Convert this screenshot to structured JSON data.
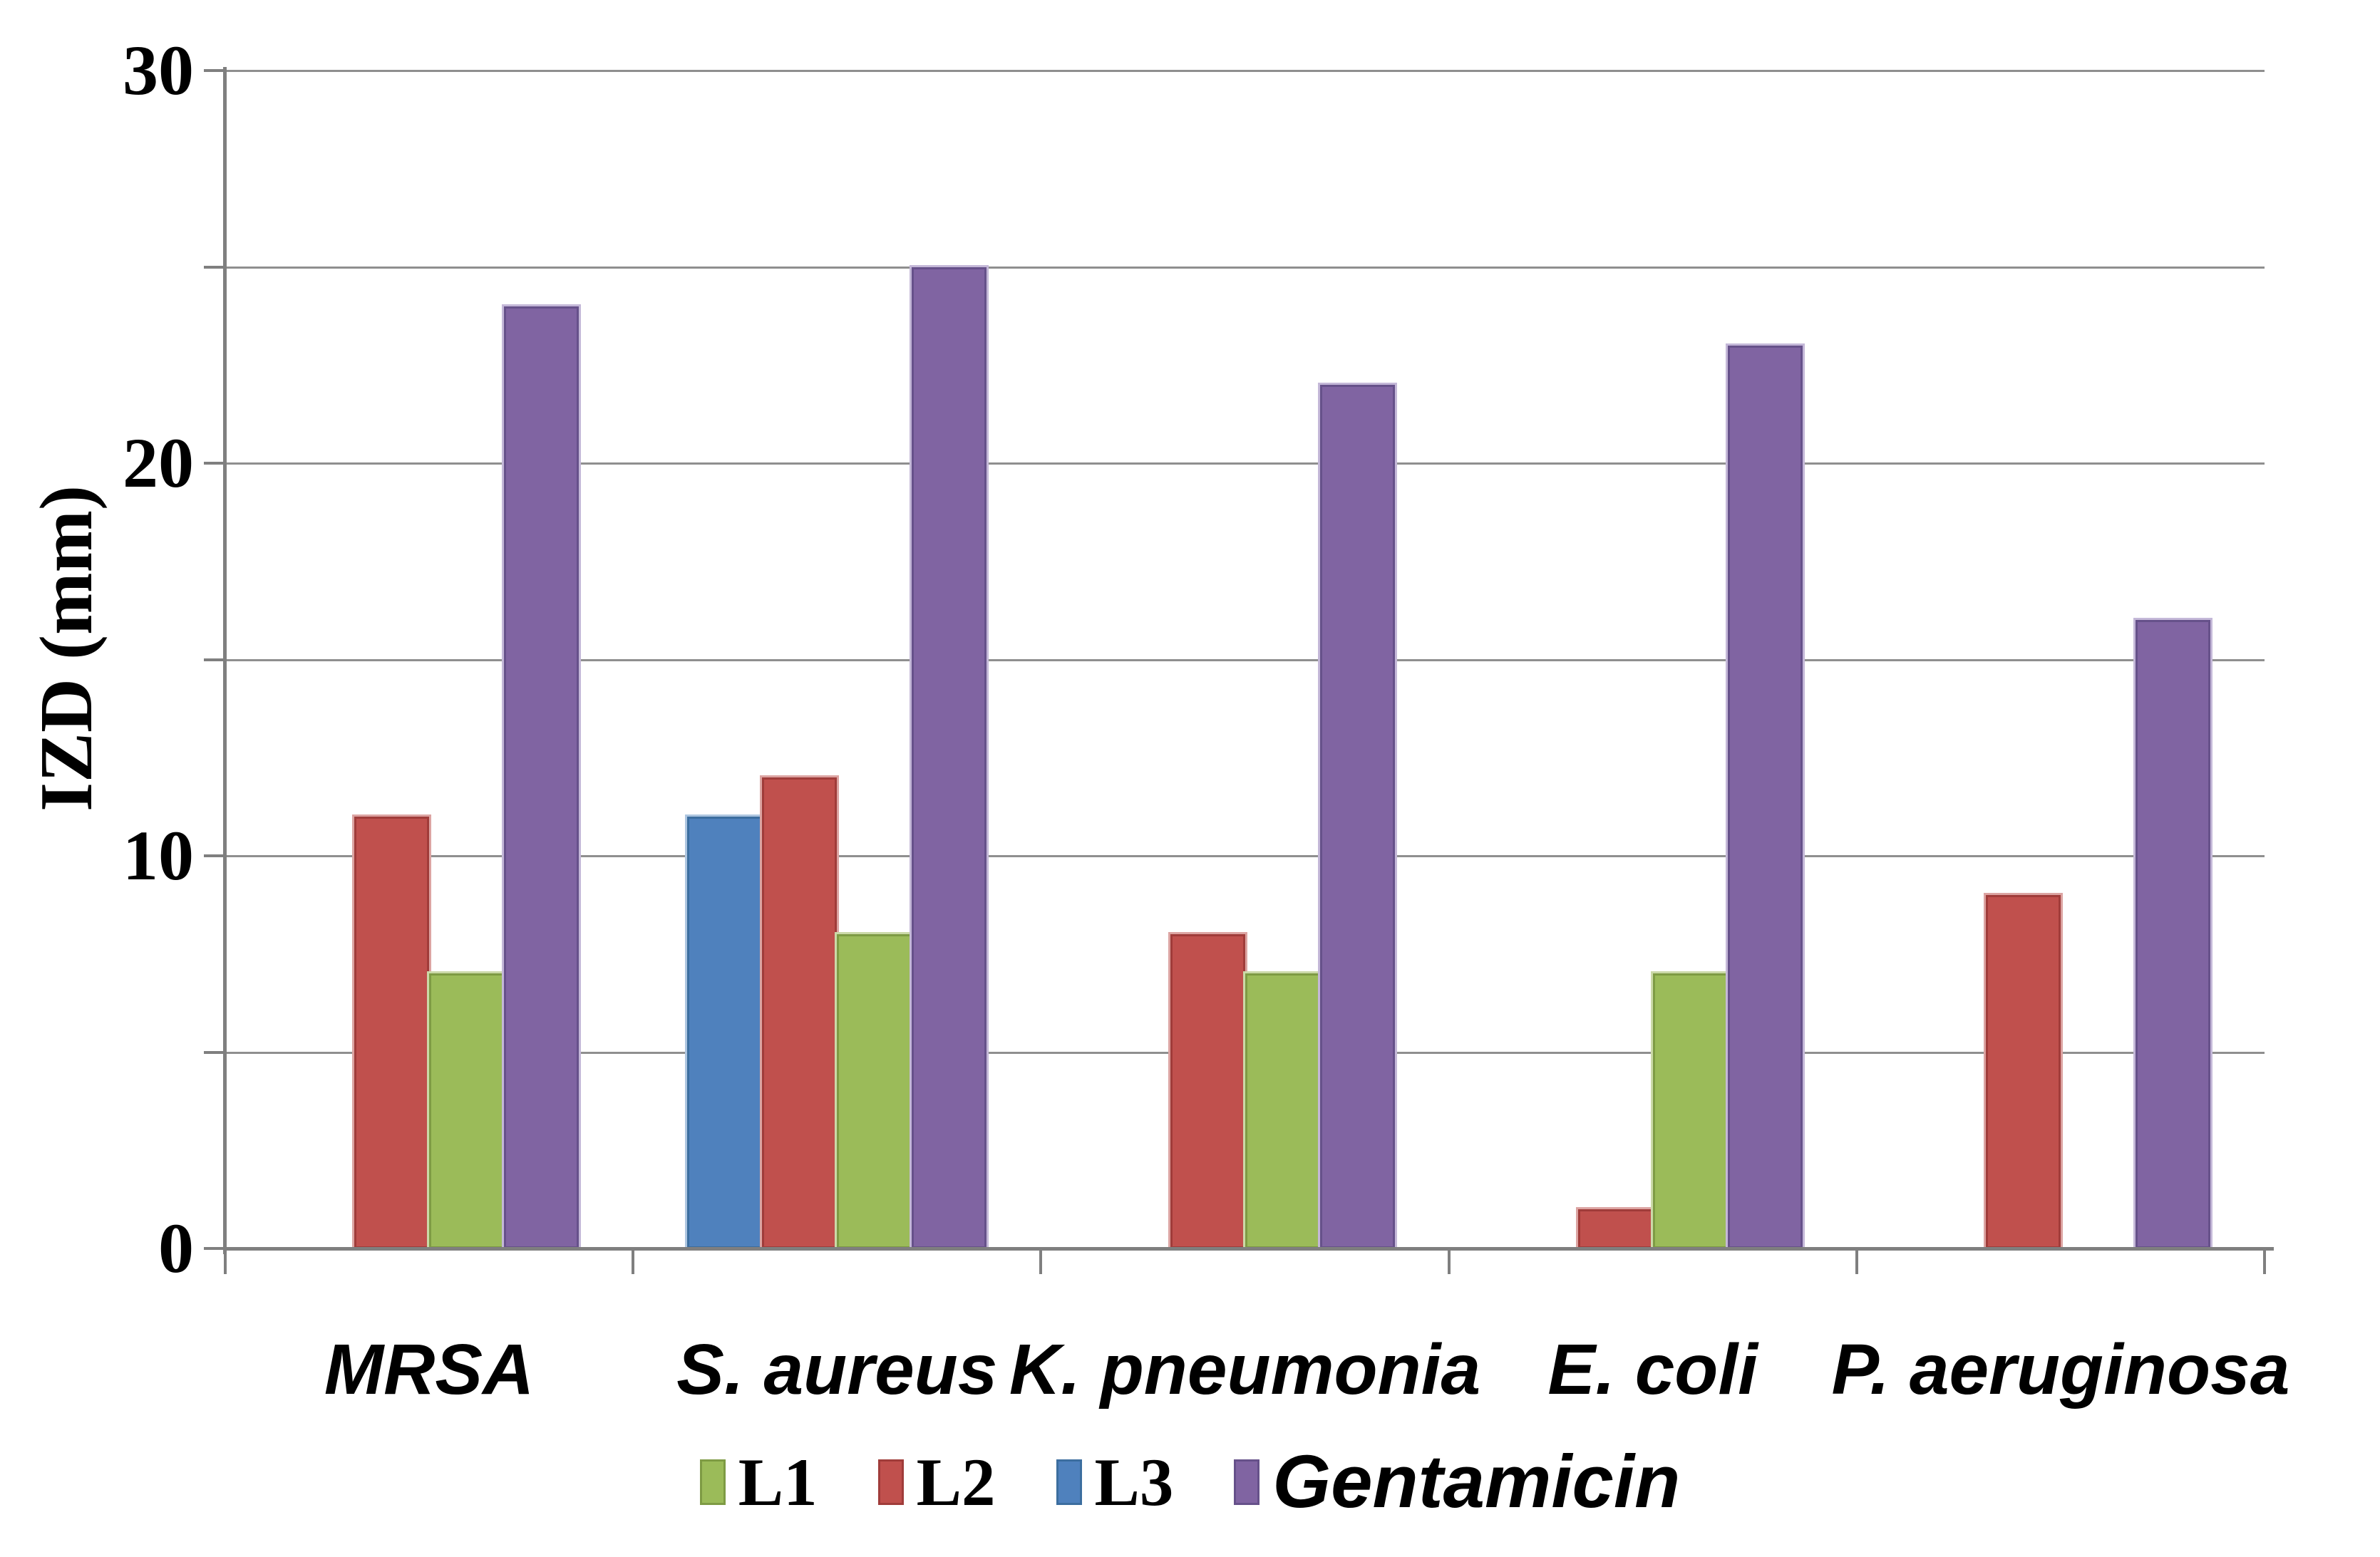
{
  "chart_data": {
    "type": "bar",
    "title": "",
    "xlabel": "",
    "ylabel": "IZD (mm)",
    "ylim": [
      0,
      30
    ],
    "gridline_step": 5,
    "grid": true,
    "legend_position": "bottom",
    "ytick_labels": [
      "0",
      "10",
      "20",
      "30"
    ],
    "ytick_values": [
      0,
      10,
      20,
      30
    ],
    "categories": [
      "MRSA",
      "S. aureus",
      "K. pneumonia",
      "E. coli",
      "P. aeruginosa"
    ],
    "series": [
      {
        "name": "L1",
        "color": "#9BBB59",
        "edge": "#7E9B44",
        "halo": "#CBD9A8",
        "values": [
          7,
          8,
          7,
          7,
          0
        ]
      },
      {
        "name": "L2",
        "color": "#C0504D",
        "edge": "#A03C3A",
        "halo": "#DCA4A2",
        "values": [
          11,
          12,
          8,
          1,
          9
        ]
      },
      {
        "name": "L3",
        "color": "#4F81BD",
        "edge": "#3C6E9F",
        "halo": "#AEC6E0",
        "values": [
          0,
          11,
          0,
          0,
          0
        ]
      },
      {
        "name": "Gentamicin",
        "color": "#8064A2",
        "edge": "#66518A",
        "halo": "#C4B8D8",
        "values": [
          24,
          25,
          22,
          23,
          16
        ]
      }
    ],
    "plot_order": [
      "L3",
      "L2",
      "L1",
      "Gentamicin"
    ],
    "legend_order": [
      "L1",
      "L2",
      "L3",
      "Gentamicin"
    ]
  }
}
